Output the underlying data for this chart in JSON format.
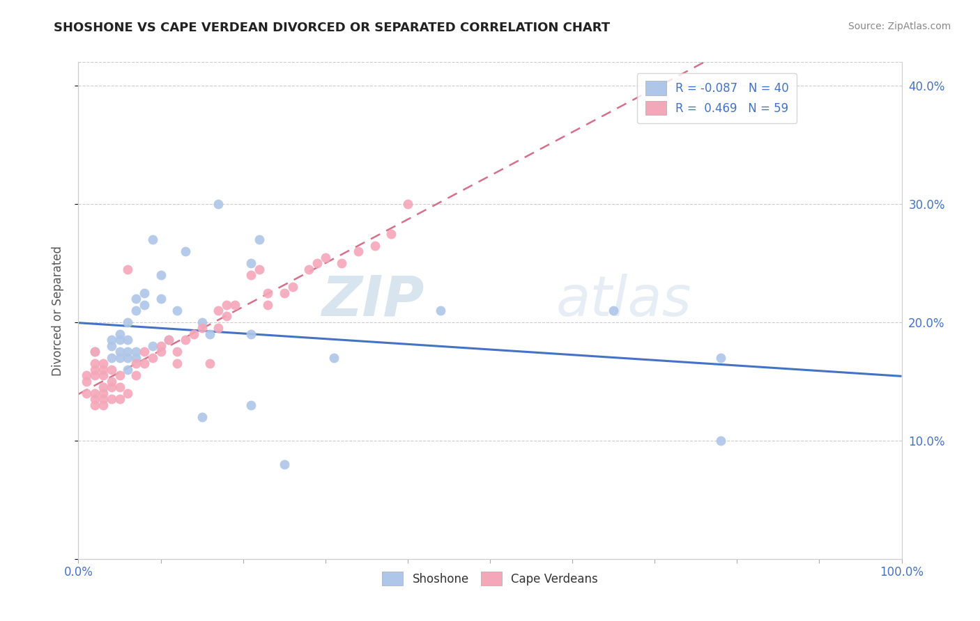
{
  "title": "SHOSHONE VS CAPE VERDEAN DIVORCED OR SEPARATED CORRELATION CHART",
  "source": "Source: ZipAtlas.com",
  "ylabel": "Divorced or Separated",
  "xmin": 0.0,
  "xmax": 1.0,
  "ymin": 0.0,
  "ymax": 0.42,
  "legend_R_shoshone": "-0.087",
  "legend_N_shoshone": "40",
  "legend_R_capeverdean": "0.469",
  "legend_N_capeverdean": "59",
  "shoshone_color": "#aec6e8",
  "capeverdean_color": "#f4a7b9",
  "trendline_shoshone_color": "#4472c4",
  "trendline_capeverdean_color": "#d4708a",
  "watermark_zip": "ZIP",
  "watermark_atlas": "atlas",
  "shoshone_x": [
    0.02,
    0.04,
    0.04,
    0.04,
    0.05,
    0.05,
    0.05,
    0.05,
    0.06,
    0.06,
    0.06,
    0.06,
    0.06,
    0.07,
    0.07,
    0.07,
    0.07,
    0.08,
    0.08,
    0.09,
    0.09,
    0.1,
    0.1,
    0.11,
    0.12,
    0.13,
    0.15,
    0.15,
    0.16,
    0.17,
    0.21,
    0.21,
    0.21,
    0.22,
    0.25,
    0.31,
    0.44,
    0.65,
    0.78,
    0.78
  ],
  "shoshone_y": [
    0.175,
    0.17,
    0.18,
    0.185,
    0.17,
    0.175,
    0.185,
    0.19,
    0.16,
    0.17,
    0.175,
    0.185,
    0.2,
    0.17,
    0.175,
    0.21,
    0.22,
    0.215,
    0.225,
    0.18,
    0.27,
    0.22,
    0.24,
    0.185,
    0.21,
    0.26,
    0.2,
    0.12,
    0.19,
    0.3,
    0.19,
    0.13,
    0.25,
    0.27,
    0.08,
    0.17,
    0.21,
    0.21,
    0.17,
    0.1
  ],
  "capeverdean_x": [
    0.01,
    0.01,
    0.01,
    0.02,
    0.02,
    0.02,
    0.02,
    0.02,
    0.02,
    0.02,
    0.03,
    0.03,
    0.03,
    0.03,
    0.03,
    0.03,
    0.03,
    0.04,
    0.04,
    0.04,
    0.04,
    0.05,
    0.05,
    0.05,
    0.06,
    0.06,
    0.07,
    0.07,
    0.08,
    0.08,
    0.09,
    0.1,
    0.1,
    0.11,
    0.12,
    0.12,
    0.13,
    0.14,
    0.15,
    0.16,
    0.17,
    0.17,
    0.18,
    0.18,
    0.19,
    0.21,
    0.22,
    0.23,
    0.23,
    0.25,
    0.26,
    0.28,
    0.29,
    0.3,
    0.32,
    0.34,
    0.36,
    0.38,
    0.4
  ],
  "capeverdean_y": [
    0.14,
    0.15,
    0.155,
    0.13,
    0.135,
    0.14,
    0.155,
    0.16,
    0.165,
    0.175,
    0.13,
    0.135,
    0.14,
    0.145,
    0.155,
    0.16,
    0.165,
    0.135,
    0.145,
    0.15,
    0.16,
    0.135,
    0.145,
    0.155,
    0.14,
    0.245,
    0.155,
    0.165,
    0.165,
    0.175,
    0.17,
    0.175,
    0.18,
    0.185,
    0.165,
    0.175,
    0.185,
    0.19,
    0.195,
    0.165,
    0.195,
    0.21,
    0.205,
    0.215,
    0.215,
    0.24,
    0.245,
    0.215,
    0.225,
    0.225,
    0.23,
    0.245,
    0.25,
    0.255,
    0.25,
    0.26,
    0.265,
    0.275,
    0.3
  ]
}
